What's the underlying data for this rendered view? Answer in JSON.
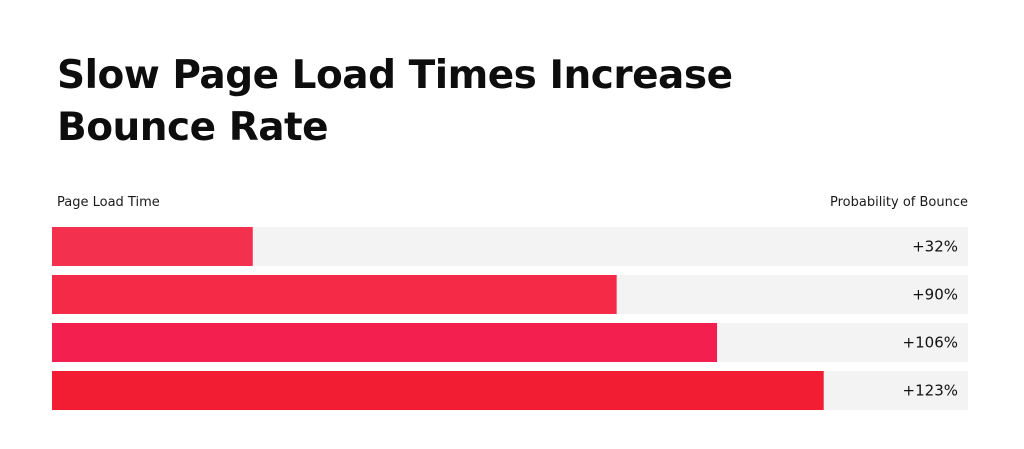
{
  "chart_data": {
    "type": "bar",
    "orientation": "horizontal",
    "title": "Slow Page Load Times Increase Bounce Rate",
    "xlabel": "Probability of Bounce",
    "ylabel": "Page Load Time",
    "categories": [
      "",
      "",
      "",
      ""
    ],
    "values": [
      32,
      90,
      106,
      123
    ],
    "value_labels": [
      "+32%",
      "+90%",
      "+106%",
      "+123%"
    ],
    "xlim": [
      0,
      146
    ],
    "grid": false,
    "legend": "none",
    "colors": {
      "bars": [
        "#f4304f",
        "#f42a47",
        "#f21f4f",
        "#f21d33"
      ],
      "track": "#f3f3f3"
    }
  }
}
